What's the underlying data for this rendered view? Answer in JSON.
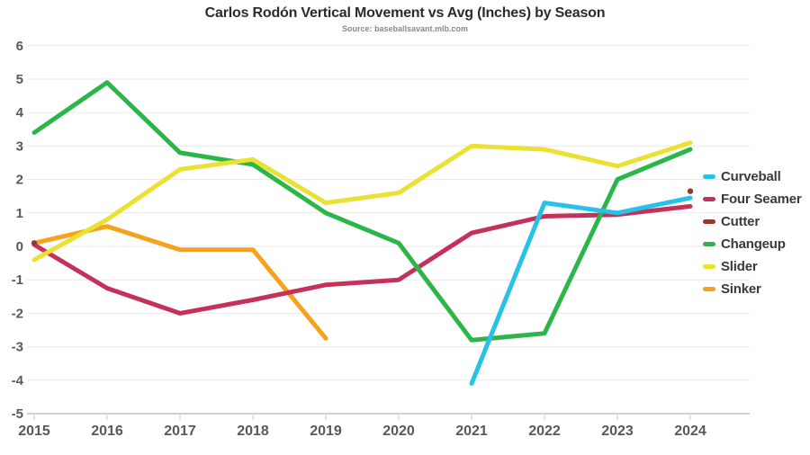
{
  "title": "Carlos Rodón Vertical Movement vs Avg (Inches) by Season",
  "subtitle": "Source: baseballsavant.mlb.com",
  "colors": {
    "background": "#ffffff",
    "grid": "#e9e9e9",
    "axis_line": "#cfcfcf",
    "tick_mark": "#dcdcdc",
    "title_text": "#2b2b2b",
    "subtitle_text": "#8a8a8a",
    "axis_text": "#595959",
    "legend_text": "#3a3a3a",
    "curveball": "#27C2E6",
    "four_seamer": "#C6315A",
    "cutter": "#8D3D2D",
    "changeup": "#2CB64A",
    "slider": "#EAE133",
    "sinker": "#F6A21C"
  },
  "chart_data": {
    "type": "line",
    "title": "Carlos Rodón Vertical Movement vs Avg (Inches) by Season",
    "subtitle": "Source: baseballsavant.mlb.com",
    "x": [
      2015,
      2016,
      2017,
      2018,
      2019,
      2020,
      2021,
      2022,
      2023,
      2024
    ],
    "xlabel": "",
    "ylabel": "",
    "ylim": [
      -5,
      6
    ],
    "yticks": [
      6,
      5,
      4,
      3,
      2,
      1,
      0,
      -1,
      -2,
      -3,
      -4,
      -5
    ],
    "grid": true,
    "legend_position": "right",
    "series": [
      {
        "name": "Curveball",
        "color": "#27C2E6",
        "style": "line",
        "values": [
          null,
          null,
          null,
          null,
          null,
          null,
          -4.1,
          1.3,
          1.0,
          1.45
        ]
      },
      {
        "name": "Four Seamer",
        "color": "#C6315A",
        "style": "line",
        "values": [
          0.05,
          -1.25,
          -2.0,
          -1.6,
          -1.15,
          -1.0,
          0.4,
          0.9,
          0.95,
          1.2
        ]
      },
      {
        "name": "Cutter",
        "color": "#8D3D2D",
        "style": "points",
        "values": [
          0.1,
          null,
          null,
          null,
          null,
          null,
          null,
          null,
          null,
          1.65
        ]
      },
      {
        "name": "Changeup",
        "color": "#2CB64A",
        "style": "line",
        "values": [
          3.4,
          4.9,
          2.8,
          2.45,
          1.0,
          0.1,
          -2.8,
          -2.6,
          2.0,
          2.9
        ]
      },
      {
        "name": "Slider",
        "color": "#EAE133",
        "style": "line",
        "values": [
          -0.4,
          0.8,
          2.3,
          2.6,
          1.3,
          1.6,
          3.0,
          2.9,
          2.4,
          3.1
        ]
      },
      {
        "name": "Sinker",
        "color": "#F6A21C",
        "style": "line",
        "values": [
          0.1,
          0.6,
          -0.1,
          -0.1,
          -2.75,
          null,
          null,
          null,
          null,
          null
        ]
      }
    ]
  }
}
